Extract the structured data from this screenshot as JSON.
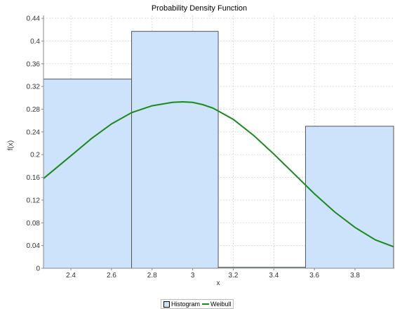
{
  "chart_data": {
    "type": "bar",
    "title": "Probability Density Function",
    "xlabel": "x",
    "ylabel": "f(x)",
    "xlim": [
      2.265,
      3.99
    ],
    "ylim": [
      0,
      0.445
    ],
    "x_ticks": [
      "2.4",
      "2.6",
      "2.8",
      "3",
      "3.2",
      "3.4",
      "3.6",
      "3.8"
    ],
    "y_ticks": [
      "0",
      "0.04",
      "0.08",
      "0.12",
      "0.16",
      "0.2",
      "0.24",
      "0.28",
      "0.32",
      "0.36",
      "0.4",
      "0.44"
    ],
    "grid": true,
    "legend_position": "bottom-center",
    "series": [
      {
        "name": "Histogram",
        "type": "histogram",
        "color": "#cce3fb",
        "edge_color": "#555555",
        "bins": [
          {
            "x0": 2.265,
            "x1": 2.699,
            "value": 0.333
          },
          {
            "x0": 2.699,
            "x1": 3.126,
            "value": 0.417
          },
          {
            "x0": 3.126,
            "x1": 3.556,
            "value": 0.0
          },
          {
            "x0": 3.556,
            "x1": 3.99,
            "value": 0.25
          }
        ]
      },
      {
        "name": "Weibull",
        "type": "line",
        "color": "#1a8a1a",
        "x": [
          2.265,
          2.4,
          2.5,
          2.6,
          2.7,
          2.8,
          2.9,
          2.95,
          3.0,
          3.05,
          3.1,
          3.2,
          3.3,
          3.4,
          3.5,
          3.6,
          3.7,
          3.8,
          3.9,
          3.99
        ],
        "values": [
          0.158,
          0.198,
          0.228,
          0.254,
          0.274,
          0.286,
          0.292,
          0.293,
          0.292,
          0.288,
          0.282,
          0.262,
          0.234,
          0.201,
          0.166,
          0.131,
          0.099,
          0.072,
          0.05,
          0.038
        ]
      }
    ]
  }
}
